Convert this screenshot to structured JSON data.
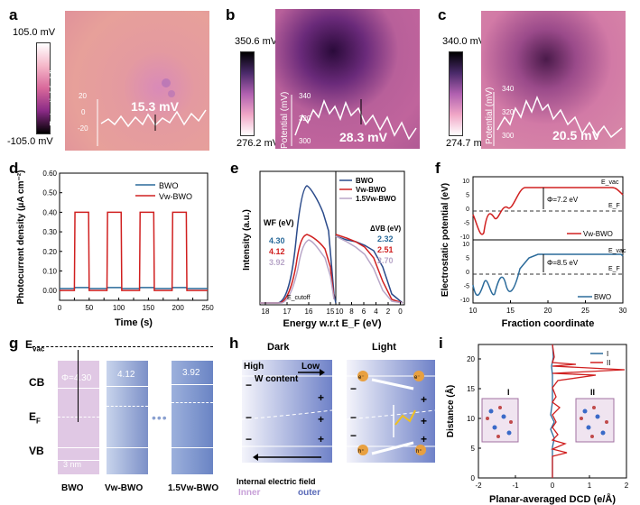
{
  "panel_letters": {
    "a": "a",
    "b": "b",
    "c": "c",
    "d": "d",
    "e": "e",
    "f": "f",
    "g": "g",
    "h": "h",
    "i": "i"
  },
  "panel_a": {
    "cbar_top": "105.0 mV",
    "cbar_bottom": "-105.0 mV",
    "yaxis": "Potential (mV)",
    "ticks": [
      "20",
      "0",
      "-20"
    ],
    "annotation": "15.3 mV"
  },
  "panel_b": {
    "cbar_top": "350.6 mV",
    "cbar_bottom": "276.2 mV",
    "yaxis": "Potential (mV)",
    "ticks": [
      "340",
      "320",
      "300"
    ],
    "annotation": "28.3 mV"
  },
  "panel_c": {
    "cbar_top": "340.0 mV",
    "cbar_bottom": "274.7 mV",
    "yaxis": "Potential (mV)",
    "ticks": [
      "340",
      "320",
      "300"
    ],
    "annotation": "20.5 mV"
  },
  "chart_data": [
    {
      "panel": "d",
      "type": "line",
      "title": "",
      "xlabel": "Time (s)",
      "ylabel": "Photocurrent density (μA cm⁻²)",
      "xlim": [
        0,
        250
      ],
      "ylim": [
        -0.05,
        0.6
      ],
      "xticks": [
        "0",
        "25",
        "50",
        "75",
        "100",
        "125",
        "150",
        "175",
        "200",
        "225",
        "250"
      ],
      "yticks": [
        "0.00",
        "0.10",
        "0.20",
        "0.30",
        "0.40",
        "0.50",
        "0.60"
      ],
      "series": [
        {
          "name": "BWO",
          "color": "#2a6a9a",
          "on": 0.015,
          "off": 0.01
        },
        {
          "name": "Vw-BWO",
          "color": "#d02020",
          "on": 0.4,
          "off": 0.0
        }
      ],
      "on_intervals": [
        [
          25,
          50
        ],
        [
          80,
          105
        ],
        [
          135,
          160
        ],
        [
          190,
          215
        ]
      ]
    },
    {
      "panel": "e",
      "type": "line",
      "xlabel": "Energy w.r.t E_F (eV)",
      "ylabel": "Intensity (a.u.)",
      "series": [
        "BWO",
        "Vw-BWO",
        "1.5Vw-BWO"
      ],
      "left_xticks": [
        "18",
        "17",
        "16",
        "15"
      ],
      "right_xticks": [
        "10",
        "8",
        "6",
        "4",
        "2",
        "0"
      ],
      "wf_title": "WF (eV)",
      "wf_values": [
        "4.30",
        "4.12",
        "3.92"
      ],
      "dvb_title": "ΔVB (eV)",
      "dvb_values": [
        "2.32",
        "2.51",
        "2.70"
      ],
      "cutoff": "E_cutoff"
    },
    {
      "panel": "f",
      "type": "line",
      "xlabel": "Fraction coordinate",
      "ylabel": "Electrostatic potential (eV)",
      "xticks": [
        "10",
        "15",
        "20",
        "25",
        "30"
      ],
      "yticks_top": [
        "10",
        "5",
        "0",
        "-5",
        "-10"
      ],
      "yticks_bottom": [
        "10",
        "5",
        "0",
        "-5",
        "-10"
      ],
      "top": {
        "name": "Vw-BWO",
        "phi": "Φ=7.2 eV",
        "evac": "E_vac",
        "ef": "E_F"
      },
      "bottom": {
        "name": "BWO",
        "phi": "Φ=8.5 eV",
        "evac": "E_vac",
        "ef": "E_F"
      }
    },
    {
      "panel": "i",
      "type": "line",
      "xlabel": "Planar-averaged DCD (e/Å)",
      "ylabel": "Distance (Å)",
      "xticks": [
        "-2",
        "-1",
        "0",
        "1",
        "2"
      ],
      "yticks": [
        "0",
        "5",
        "10",
        "15",
        "20"
      ],
      "series": [
        {
          "name": "I",
          "color": "#2a6a9a"
        },
        {
          "name": "II",
          "color": "#d02020"
        }
      ],
      "inset_labels": [
        "I",
        "II"
      ]
    }
  ],
  "panel_g": {
    "evac": "E",
    "evac_sub": "vac",
    "cb": "CB",
    "ef": "E",
    "ef_sub": "F",
    "vb": "VB",
    "phi": "Φ=4.30",
    "wf2": "4.12",
    "wf3": "3.92",
    "scale": "3 nm",
    "names": [
      "BWO",
      "Vw-BWO",
      "1.5Vw-BWO"
    ]
  },
  "panel_h": {
    "dark": "Dark",
    "light": "Light",
    "high": "High",
    "low": "Low",
    "w_content": "W content",
    "field": "Internal electric field",
    "inner": "Inner",
    "outer": "outer",
    "minus": "−",
    "plus": "+",
    "electron": "e⁻",
    "hole": "h⁺"
  },
  "colors": {
    "bwo": "#2a6a9a",
    "vw": "#d02020",
    "vw15": "#b8a6c8",
    "afm_mid": "#c8609a",
    "afm_dark": "#2a0a2a"
  }
}
